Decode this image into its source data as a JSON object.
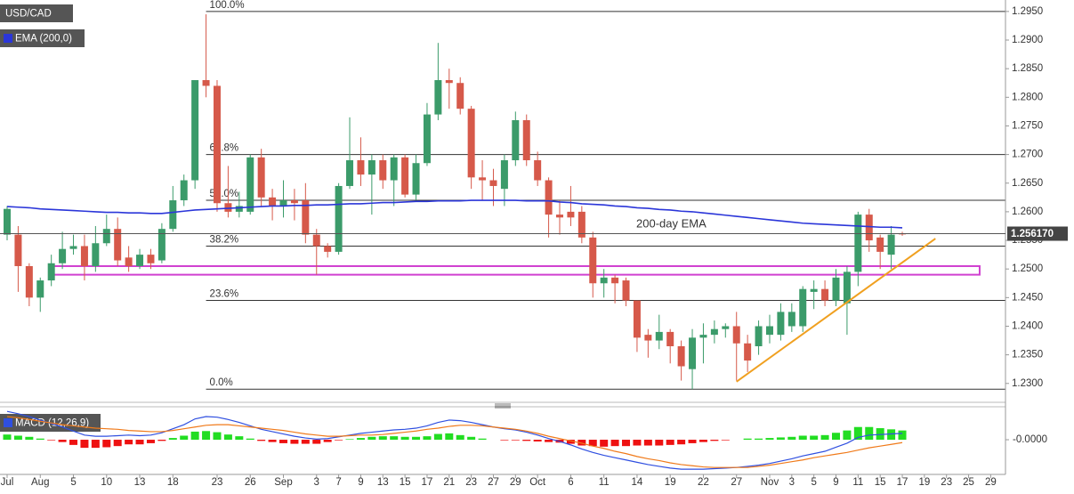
{
  "chart_data": [
    {
      "type": "candlestick",
      "title": "USD/CAD",
      "categories": [
        "Jul",
        null,
        null,
        "Aug",
        null,
        null,
        "5",
        null,
        null,
        "10",
        null,
        null,
        "13",
        null,
        null,
        "18",
        null,
        null,
        null,
        "23",
        null,
        null,
        "26",
        null,
        null,
        "Sep",
        null,
        null,
        "3",
        null,
        "7",
        null,
        "9",
        null,
        "13",
        null,
        "15",
        null,
        "17",
        null,
        "21",
        null,
        "23",
        null,
        "27",
        null,
        "29",
        null,
        "Oct",
        null,
        null,
        "6",
        null,
        null,
        "11",
        null,
        null,
        "14",
        null,
        null,
        "19",
        null,
        null,
        "22",
        null,
        null,
        "27",
        null,
        null,
        "Nov",
        null,
        "3",
        null,
        "5",
        null,
        "9",
        null,
        "11",
        null,
        "15",
        null,
        "17",
        null,
        "19",
        null,
        "23",
        null,
        "25",
        null,
        "29"
      ],
      "open": [
        1.256,
        1.256,
        1.2505,
        1.245,
        1.248,
        1.251,
        1.2535,
        1.254,
        1.2505,
        1.2545,
        1.257,
        1.252,
        1.2505,
        1.2525,
        1.2515,
        1.257,
        1.262,
        1.2655,
        1.283,
        1.282,
        1.2615,
        1.26,
        1.26,
        1.2695,
        1.2625,
        1.261,
        1.262,
        1.262,
        1.256,
        1.254,
        1.253,
        1.2645,
        1.269,
        1.2665,
        1.269,
        1.2655,
        1.2695,
        1.263,
        1.2685,
        1.277,
        1.283,
        1.2825,
        1.278,
        1.266,
        1.2655,
        1.264,
        1.269,
        1.276,
        1.269,
        1.2655,
        1.2595,
        1.26,
        1.26,
        1.2555,
        1.2475,
        1.2485,
        1.248,
        1.2445,
        1.2385,
        1.2375,
        1.239,
        1.2365,
        1.2325,
        1.238,
        1.2385,
        1.2395,
        1.24,
        1.237,
        1.2365,
        1.2385,
        1.2385,
        1.24,
        1.24,
        1.246,
        1.2465,
        1.2445,
        1.244,
        1.2495,
        1.2595,
        1.2555,
        1.2525,
        1.2562,
        null,
        null,
        null,
        null,
        null,
        null,
        null,
        null
      ],
      "high": [
        1.261,
        1.2575,
        1.251,
        1.2485,
        1.2525,
        1.2565,
        1.256,
        1.256,
        1.2575,
        1.2595,
        1.259,
        1.254,
        1.2535,
        1.2535,
        1.258,
        1.2645,
        1.2665,
        1.283,
        1.2945,
        1.283,
        1.268,
        1.2635,
        1.27,
        1.271,
        1.264,
        1.2655,
        1.264,
        1.265,
        1.257,
        1.2545,
        1.265,
        1.2765,
        1.273,
        1.27,
        1.27,
        1.27,
        1.27,
        1.27,
        1.279,
        1.2895,
        1.285,
        1.2835,
        1.2785,
        1.269,
        1.2675,
        1.27,
        1.2775,
        1.277,
        1.2705,
        1.266,
        1.262,
        1.2645,
        1.261,
        1.2565,
        1.25,
        1.249,
        1.2485,
        1.2445,
        1.2395,
        1.242,
        1.2395,
        1.2375,
        1.2395,
        1.2405,
        1.241,
        1.2405,
        1.2425,
        1.2385,
        1.241,
        1.242,
        1.244,
        1.244,
        1.247,
        1.248,
        1.248,
        1.25,
        1.2505,
        1.26,
        1.2605,
        1.256,
        1.2575,
        1.2565,
        null,
        null,
        null,
        null,
        null,
        null,
        null,
        null
      ],
      "low": [
        1.255,
        1.246,
        1.2435,
        1.2425,
        1.247,
        1.25,
        1.2525,
        1.248,
        1.2495,
        1.254,
        1.2505,
        1.2495,
        1.25,
        1.25,
        1.251,
        1.2565,
        1.261,
        1.264,
        1.28,
        1.26,
        1.259,
        1.259,
        1.2595,
        1.261,
        1.2585,
        1.259,
        1.2585,
        1.2545,
        1.249,
        1.252,
        1.2525,
        1.264,
        1.2645,
        1.2595,
        1.264,
        1.261,
        1.2625,
        1.262,
        1.268,
        1.276,
        1.278,
        1.277,
        1.264,
        1.262,
        1.261,
        1.261,
        1.268,
        1.268,
        1.2645,
        1.2555,
        1.256,
        1.2575,
        1.2545,
        1.245,
        1.245,
        1.244,
        1.2435,
        1.2355,
        1.2345,
        1.236,
        1.2335,
        1.2305,
        1.229,
        1.2335,
        1.237,
        1.238,
        1.2305,
        1.232,
        1.235,
        1.237,
        1.2375,
        1.239,
        1.239,
        1.243,
        1.2435,
        1.2435,
        1.2385,
        1.247,
        1.253,
        1.25,
        1.25,
        1.2558,
        null,
        null,
        null,
        null,
        null,
        null,
        null,
        null
      ],
      "close": [
        1.2605,
        1.2505,
        1.245,
        1.248,
        1.251,
        1.2535,
        1.254,
        1.2505,
        1.2545,
        1.257,
        1.2515,
        1.2505,
        1.2525,
        1.251,
        1.257,
        1.262,
        1.2655,
        1.283,
        1.282,
        1.2615,
        1.26,
        1.261,
        1.2695,
        1.2625,
        1.261,
        1.262,
        1.2615,
        1.256,
        1.254,
        1.253,
        1.2645,
        1.269,
        1.2665,
        1.269,
        1.2655,
        1.2695,
        1.263,
        1.2685,
        1.277,
        1.283,
        1.2825,
        1.278,
        1.266,
        1.2655,
        1.2645,
        1.269,
        1.276,
        1.269,
        1.2655,
        1.2595,
        1.259,
        1.259,
        1.2555,
        1.2475,
        1.2485,
        1.2475,
        1.2445,
        1.238,
        1.2375,
        1.239,
        1.2365,
        1.233,
        1.238,
        1.2385,
        1.2395,
        1.24,
        1.237,
        1.234,
        1.24,
        1.24,
        1.2425,
        1.2425,
        1.2465,
        1.2465,
        1.2445,
        1.2485,
        1.2495,
        1.2595,
        1.255,
        1.253,
        1.256,
        1.2561,
        null,
        null,
        null,
        null,
        null,
        null,
        null,
        null
      ],
      "up_color": "#3b9b6a",
      "down_color": "#d6594a",
      "ylim": [
        1.2267,
        1.297
      ],
      "yticks": [
        {
          "value": 1.295,
          "label": "1.2950"
        },
        {
          "value": 1.29,
          "label": "1.2900"
        },
        {
          "value": 1.285,
          "label": "1.2850"
        },
        {
          "value": 1.28,
          "label": "1.2800"
        },
        {
          "value": 1.275,
          "label": "1.2750"
        },
        {
          "value": 1.27,
          "label": "1.2700"
        },
        {
          "value": 1.265,
          "label": "1.2650"
        },
        {
          "value": 1.26,
          "label": "1.2600"
        },
        {
          "value": 1.255,
          "label": "1.2550"
        },
        {
          "value": 1.25,
          "label": "1.2500"
        },
        {
          "value": 1.245,
          "label": "1.2450"
        },
        {
          "value": 1.24,
          "label": "1.2400"
        },
        {
          "value": 1.235,
          "label": "1.2350"
        },
        {
          "value": 1.23,
          "label": "1.2300"
        }
      ],
      "last_price": {
        "value": 1.25617,
        "label": "1.256170"
      },
      "ema": {
        "name": "EMA (200,0)",
        "label": "200-day EMA",
        "color": "#2b36d9",
        "values": [
          1.2609,
          1.2608,
          1.2607,
          1.2605,
          1.2604,
          1.2603,
          1.2602,
          1.2601,
          1.26,
          1.2599,
          1.2599,
          1.2598,
          1.2598,
          1.2597,
          1.2597,
          1.2599,
          1.2601,
          1.2603,
          1.2604,
          1.2605,
          1.2606,
          1.2607,
          1.2608,
          1.2609,
          1.261,
          1.261,
          1.2611,
          1.2611,
          1.2612,
          1.2612,
          1.2613,
          1.2614,
          1.2614,
          1.2615,
          1.2616,
          1.2616,
          1.2617,
          1.2618,
          1.2618,
          1.2619,
          1.2619,
          1.2619,
          1.262,
          1.262,
          1.262,
          1.262,
          1.262,
          1.2619,
          1.2619,
          1.2619,
          1.2617,
          1.2616,
          1.2614,
          1.2613,
          1.2612,
          1.261,
          1.2609,
          1.2607,
          1.2606,
          1.2604,
          1.2603,
          1.2601,
          1.26,
          1.2598,
          1.2596,
          1.2594,
          1.2592,
          1.259,
          1.2588,
          1.2586,
          1.2584,
          1.2582,
          1.258,
          1.2579,
          1.2578,
          1.2577,
          1.2576,
          1.2575,
          1.2574,
          1.2573,
          1.2573,
          1.2572,
          null,
          null,
          null,
          null,
          null,
          null,
          null,
          null
        ]
      },
      "fib_levels": {
        "start": 18,
        "color": "#333333",
        "levels": [
          {
            "label": "100.0%",
            "value": 1.295
          },
          {
            "label": "61.8%",
            "value": 1.27
          },
          {
            "label": "50.0%",
            "value": 1.262
          },
          {
            "label": "38.2%",
            "value": 1.254
          },
          {
            "label": "23.6%",
            "value": 1.2445
          },
          {
            "label": "0.0%",
            "value": 1.229
          }
        ]
      },
      "zone": {
        "from": 4,
        "to": 88,
        "values": [
          1.249,
          1.2505
        ],
        "color": "#d040d0"
      },
      "trendline": {
        "x": [
          66,
          84
        ],
        "values": [
          1.2303,
          1.2553
        ],
        "color": "#f0a020"
      }
    },
    {
      "type": "macd",
      "title": "MACD (12,26,9)",
      "macd": {
        "color": "#2f4fe0",
        "values": [
          0.0049,
          0.0045,
          0.004,
          0.0034,
          0.0028,
          0.0022,
          0.0015,
          0.0008,
          0.0006,
          0.0006,
          0.0007,
          0.0008,
          0.0007,
          0.0008,
          0.0012,
          0.0019,
          0.0026,
          0.0036,
          0.004,
          0.0039,
          0.0035,
          0.003,
          0.0024,
          0.0018,
          0.0014,
          0.001,
          0.0006,
          0.0003,
          0.0001,
          0.0002,
          0.0005,
          0.0008,
          0.0011,
          0.0013,
          0.0015,
          0.0017,
          0.0018,
          0.002,
          0.0024,
          0.003,
          0.0034,
          0.0033,
          0.003,
          0.0026,
          0.0022,
          0.0019,
          0.0017,
          0.0013,
          0.0008,
          0.0002,
          -0.0003,
          -0.0009,
          -0.0016,
          -0.0022,
          -0.0027,
          -0.0031,
          -0.0035,
          -0.0039,
          -0.0043,
          -0.0046,
          -0.0049,
          -0.0051,
          -0.0051,
          -0.0051,
          -0.005,
          -0.0049,
          -0.0048,
          -0.0046,
          -0.0044,
          -0.0041,
          -0.0037,
          -0.0033,
          -0.0028,
          -0.0024,
          -0.002,
          -0.0013,
          -0.0006,
          0.0004,
          0.0008,
          0.0009,
          0.001,
          0.0011,
          null,
          null,
          null,
          null,
          null,
          null,
          null,
          null
        ]
      },
      "signal": {
        "color": "#f07a1a",
        "values": [
          0.004,
          0.0038,
          0.0035,
          0.0032,
          0.0029,
          0.0026,
          0.0024,
          0.0022,
          0.002,
          0.0019,
          0.0018,
          0.0016,
          0.0015,
          0.0014,
          0.0014,
          0.0016,
          0.0019,
          0.0022,
          0.0025,
          0.0026,
          0.0026,
          0.0024,
          0.0022,
          0.002,
          0.0018,
          0.0016,
          0.0013,
          0.001,
          0.0008,
          0.0006,
          0.0006,
          0.0007,
          0.0008,
          0.0008,
          0.0009,
          0.0011,
          0.0013,
          0.0015,
          0.0018,
          0.002,
          0.0023,
          0.0025,
          0.0025,
          0.0024,
          0.0022,
          0.002,
          0.0018,
          0.0015,
          0.0011,
          0.0006,
          0.0002,
          -0.0002,
          -0.0006,
          -0.0011,
          -0.0015,
          -0.002,
          -0.0024,
          -0.0029,
          -0.0033,
          -0.0036,
          -0.004,
          -0.0043,
          -0.0045,
          -0.0047,
          -0.0048,
          -0.0048,
          -0.0048,
          -0.0048,
          -0.0046,
          -0.0044,
          -0.0041,
          -0.0038,
          -0.0035,
          -0.0031,
          -0.0028,
          -0.0025,
          -0.0022,
          -0.0018,
          -0.0014,
          -0.0011,
          -0.0008,
          -0.0005,
          null,
          null,
          null,
          null,
          null,
          null,
          null,
          null
        ]
      },
      "histogram": {
        "up_color": "#22dd22",
        "down_color": "#ee1111",
        "values": [
          0.0009,
          0.0007,
          0.0005,
          0.0002,
          -0.0001,
          -0.0004,
          -0.0009,
          -0.0014,
          -0.0014,
          -0.0013,
          -0.0011,
          -0.0008,
          -0.0008,
          -0.0006,
          -0.0002,
          0.0003,
          0.0007,
          0.0014,
          0.0015,
          0.0013,
          0.0009,
          0.0006,
          0.0002,
          -0.0002,
          -0.0004,
          -0.0006,
          -0.0007,
          -0.0007,
          -0.0007,
          -0.0004,
          -0.0001,
          0.0001,
          0.0003,
          0.0005,
          0.0006,
          0.0006,
          0.0005,
          0.0005,
          0.0006,
          0.001,
          0.0011,
          0.0008,
          0.0005,
          0.0002,
          0,
          -0.0001,
          -0.0001,
          -0.0002,
          -0.0003,
          -0.0004,
          -0.0005,
          -0.0007,
          -0.001,
          -0.0011,
          -0.0012,
          -0.0011,
          -0.0011,
          -0.001,
          -0.001,
          -0.001,
          -0.0009,
          -0.0008,
          -0.0006,
          -0.0004,
          -0.0002,
          -0.0001,
          0,
          0.0002,
          0.0002,
          0.0003,
          0.0004,
          0.0005,
          0.0007,
          0.0007,
          0.0008,
          0.0012,
          0.0016,
          0.0022,
          0.0022,
          0.002,
          0.0018,
          0.0016,
          null,
          null,
          null,
          null,
          null,
          null,
          null,
          null
        ]
      },
      "ylim": [
        -0.006,
        0.0057
      ],
      "yticks": [
        {
          "value": 0,
          "label": "-0.0000"
        }
      ]
    }
  ]
}
